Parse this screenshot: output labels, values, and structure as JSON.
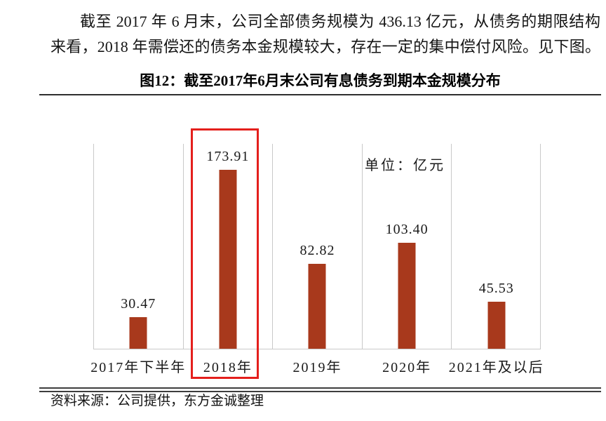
{
  "paragraph": {
    "line1": "截至 2017 年 6 月末，公司全部债务规模为 436.13 亿元，从债务的期限结构",
    "line2": "来看，2018 年需偿还的债务本金规模较大，存在一定的集中偿付风险。见下图。"
  },
  "figure": {
    "title": "图12：截至2017年6月末公司有息债务到期本金规模分布",
    "source": "资料来源：公司提供，东方金诚整理"
  },
  "chart_data": {
    "type": "bar",
    "title": "截至2017年6月末公司有息债务到期本金规模分布",
    "unit_label": "单位：亿元",
    "categories": [
      "2017年下半年",
      "2018年",
      "2019年",
      "2020年",
      "2021年及以后"
    ],
    "values": [
      30.47,
      173.91,
      82.82,
      103.4,
      45.53
    ],
    "value_labels": [
      "30.47",
      "173.91",
      "82.82",
      "103.40",
      "45.53"
    ],
    "ylabel": "亿元",
    "xlabel": "",
    "ylim": [
      0,
      200
    ],
    "grid": "vertical category separators, no horizontal gridlines, no y-axis ticks",
    "legend": "none",
    "bar_color": "#a8391c",
    "gridline_color": "#c9c9c9",
    "highlighted_category": "2018年",
    "highlight_index": 1,
    "highlight_color": "#e41f1c"
  }
}
